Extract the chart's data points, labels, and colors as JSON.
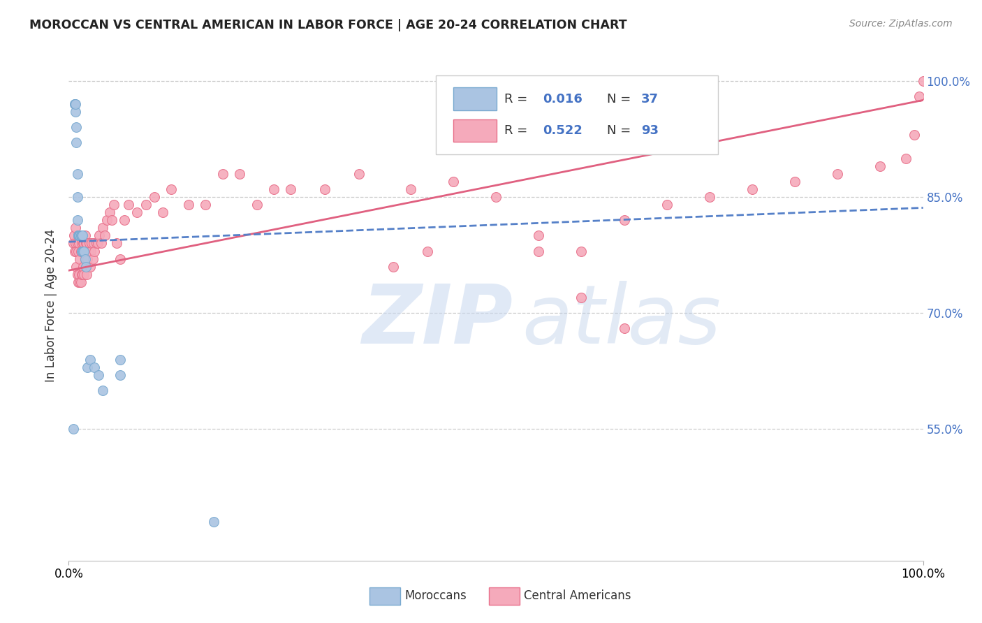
{
  "title": "MOROCCAN VS CENTRAL AMERICAN IN LABOR FORCE | AGE 20-24 CORRELATION CHART",
  "source": "Source: ZipAtlas.com",
  "ylabel": "In Labor Force | Age 20-24",
  "ytick_labels": [
    "55.0%",
    "70.0%",
    "85.0%",
    "100.0%"
  ],
  "ytick_values": [
    0.55,
    0.7,
    0.85,
    1.0
  ],
  "xmin": 0.0,
  "xmax": 1.0,
  "ymin": 0.38,
  "ymax": 1.04,
  "moroccan_color": "#aac4e2",
  "central_color": "#f5aabb",
  "moroccan_edge": "#7aaad0",
  "central_edge": "#e8708a",
  "moroccan_line_color": "#5580c8",
  "central_line_color": "#e06080",
  "watermark_zip_color": "#c8d8f0",
  "watermark_atlas_color": "#b8cce8",
  "moroccan_x": [
    0.005,
    0.007,
    0.007,
    0.008,
    0.008,
    0.009,
    0.009,
    0.01,
    0.01,
    0.01,
    0.011,
    0.011,
    0.011,
    0.012,
    0.012,
    0.012,
    0.013,
    0.013,
    0.013,
    0.014,
    0.014,
    0.015,
    0.015,
    0.016,
    0.016,
    0.017,
    0.018,
    0.019,
    0.02,
    0.022,
    0.025,
    0.03,
    0.035,
    0.04,
    0.06,
    0.06,
    0.17
  ],
  "moroccan_y": [
    0.55,
    0.97,
    0.97,
    0.96,
    0.97,
    0.94,
    0.92,
    0.88,
    0.85,
    0.82,
    0.8,
    0.8,
    0.8,
    0.8,
    0.8,
    0.8,
    0.8,
    0.8,
    0.8,
    0.8,
    0.8,
    0.8,
    0.78,
    0.8,
    0.78,
    0.78,
    0.78,
    0.77,
    0.76,
    0.63,
    0.64,
    0.63,
    0.62,
    0.6,
    0.62,
    0.64,
    0.43
  ],
  "central_x": [
    0.005,
    0.006,
    0.007,
    0.008,
    0.008,
    0.009,
    0.009,
    0.01,
    0.01,
    0.011,
    0.011,
    0.011,
    0.012,
    0.012,
    0.013,
    0.013,
    0.013,
    0.014,
    0.014,
    0.014,
    0.015,
    0.015,
    0.016,
    0.016,
    0.016,
    0.017,
    0.017,
    0.018,
    0.018,
    0.019,
    0.019,
    0.02,
    0.02,
    0.021,
    0.021,
    0.022,
    0.023,
    0.024,
    0.025,
    0.026,
    0.027,
    0.028,
    0.029,
    0.03,
    0.032,
    0.034,
    0.036,
    0.038,
    0.04,
    0.042,
    0.045,
    0.048,
    0.05,
    0.053,
    0.056,
    0.06,
    0.065,
    0.07,
    0.08,
    0.09,
    0.1,
    0.11,
    0.12,
    0.14,
    0.16,
    0.18,
    0.2,
    0.22,
    0.24,
    0.26,
    0.3,
    0.34,
    0.4,
    0.45,
    0.5,
    0.55,
    0.6,
    0.65,
    0.7,
    0.75,
    0.8,
    0.85,
    0.9,
    0.95,
    0.98,
    0.99,
    0.995,
    1.0,
    0.38,
    0.42,
    0.55,
    0.6,
    0.65
  ],
  "central_y": [
    0.79,
    0.8,
    0.78,
    0.79,
    0.81,
    0.76,
    0.78,
    0.75,
    0.79,
    0.74,
    0.78,
    0.8,
    0.75,
    0.79,
    0.74,
    0.77,
    0.8,
    0.74,
    0.78,
    0.8,
    0.75,
    0.79,
    0.75,
    0.78,
    0.8,
    0.76,
    0.79,
    0.75,
    0.79,
    0.77,
    0.8,
    0.76,
    0.79,
    0.75,
    0.79,
    0.77,
    0.78,
    0.79,
    0.76,
    0.78,
    0.79,
    0.77,
    0.79,
    0.78,
    0.79,
    0.79,
    0.8,
    0.79,
    0.81,
    0.8,
    0.82,
    0.83,
    0.82,
    0.84,
    0.79,
    0.77,
    0.82,
    0.84,
    0.83,
    0.84,
    0.85,
    0.83,
    0.86,
    0.84,
    0.84,
    0.88,
    0.88,
    0.84,
    0.86,
    0.86,
    0.86,
    0.88,
    0.86,
    0.87,
    0.85,
    0.78,
    0.78,
    0.82,
    0.84,
    0.85,
    0.86,
    0.87,
    0.88,
    0.89,
    0.9,
    0.93,
    0.98,
    1.0,
    0.76,
    0.78,
    0.8,
    0.72,
    0.68
  ],
  "mor_line_x0": 0.0,
  "mor_line_x1": 1.0,
  "mor_line_y0": 0.792,
  "mor_line_y1": 0.836,
  "cen_line_x0": 0.0,
  "cen_line_x1": 1.0,
  "cen_line_y0": 0.755,
  "cen_line_y1": 0.975
}
